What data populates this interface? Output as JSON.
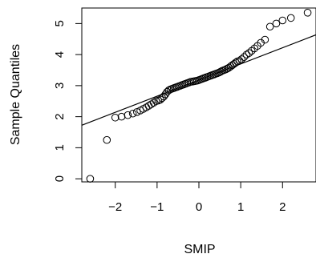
{
  "chart_data": {
    "type": "scatter",
    "title": "",
    "xlabel": "SMIP",
    "ylabel": "Sample Quantiles",
    "xlim": [
      -2.8,
      2.8
    ],
    "ylim": [
      -0.1,
      5.5
    ],
    "x_ticks": [
      -2,
      -1,
      0,
      1,
      2
    ],
    "x_tick_labels": [
      "−2",
      "−1",
      "0",
      "1",
      "2"
    ],
    "y_ticks": [
      0,
      1,
      2,
      3,
      4,
      5
    ],
    "y_tick_labels": [
      "0",
      "1",
      "2",
      "3",
      "4",
      "5"
    ],
    "grid": false,
    "series": [
      {
        "marker": "open-circle",
        "color": "#000000",
        "points": [
          [
            -2.6,
            0.0
          ],
          [
            -2.2,
            1.25
          ],
          [
            -2.0,
            1.97
          ],
          [
            -1.85,
            2.0
          ],
          [
            -1.7,
            2.05
          ],
          [
            -1.58,
            2.1
          ],
          [
            -1.48,
            2.15
          ],
          [
            -1.4,
            2.2
          ],
          [
            -1.33,
            2.25
          ],
          [
            -1.26,
            2.3
          ],
          [
            -1.2,
            2.35
          ],
          [
            -1.14,
            2.4
          ],
          [
            -1.08,
            2.45
          ],
          [
            -1.02,
            2.5
          ],
          [
            -0.97,
            2.52
          ],
          [
            -0.92,
            2.55
          ],
          [
            -0.88,
            2.6
          ],
          [
            -0.84,
            2.65
          ],
          [
            -0.8,
            2.72
          ],
          [
            -0.76,
            2.8
          ],
          [
            -0.72,
            2.85
          ],
          [
            -0.68,
            2.88
          ],
          [
            -0.64,
            2.9
          ],
          [
            -0.6,
            2.92
          ],
          [
            -0.56,
            2.94
          ],
          [
            -0.52,
            2.96
          ],
          [
            -0.48,
            2.98
          ],
          [
            -0.44,
            3.0
          ],
          [
            -0.4,
            3.02
          ],
          [
            -0.36,
            3.04
          ],
          [
            -0.32,
            3.06
          ],
          [
            -0.28,
            3.08
          ],
          [
            -0.24,
            3.1
          ],
          [
            -0.2,
            3.12
          ],
          [
            -0.16,
            3.13
          ],
          [
            -0.12,
            3.14
          ],
          [
            -0.08,
            3.15
          ],
          [
            -0.04,
            3.16
          ],
          [
            0.0,
            3.18
          ],
          [
            0.04,
            3.2
          ],
          [
            0.08,
            3.22
          ],
          [
            0.12,
            3.24
          ],
          [
            0.16,
            3.26
          ],
          [
            0.2,
            3.28
          ],
          [
            0.24,
            3.3
          ],
          [
            0.28,
            3.32
          ],
          [
            0.32,
            3.34
          ],
          [
            0.36,
            3.36
          ],
          [
            0.4,
            3.38
          ],
          [
            0.44,
            3.4
          ],
          [
            0.48,
            3.42
          ],
          [
            0.52,
            3.45
          ],
          [
            0.56,
            3.48
          ],
          [
            0.6,
            3.5
          ],
          [
            0.64,
            3.52
          ],
          [
            0.68,
            3.55
          ],
          [
            0.72,
            3.58
          ],
          [
            0.76,
            3.62
          ],
          [
            0.8,
            3.66
          ],
          [
            0.84,
            3.7
          ],
          [
            0.88,
            3.74
          ],
          [
            0.92,
            3.78
          ],
          [
            0.97,
            3.8
          ],
          [
            1.02,
            3.85
          ],
          [
            1.08,
            3.92
          ],
          [
            1.14,
            4.0
          ],
          [
            1.2,
            4.05
          ],
          [
            1.26,
            4.12
          ],
          [
            1.33,
            4.2
          ],
          [
            1.4,
            4.28
          ],
          [
            1.48,
            4.38
          ],
          [
            1.58,
            4.48
          ],
          [
            1.7,
            4.9
          ],
          [
            1.85,
            5.0
          ],
          [
            2.0,
            5.1
          ],
          [
            2.2,
            5.18
          ],
          [
            2.6,
            5.35
          ]
        ]
      }
    ],
    "reference_line": {
      "intercept": 3.18,
      "slope": 0.52
    }
  }
}
